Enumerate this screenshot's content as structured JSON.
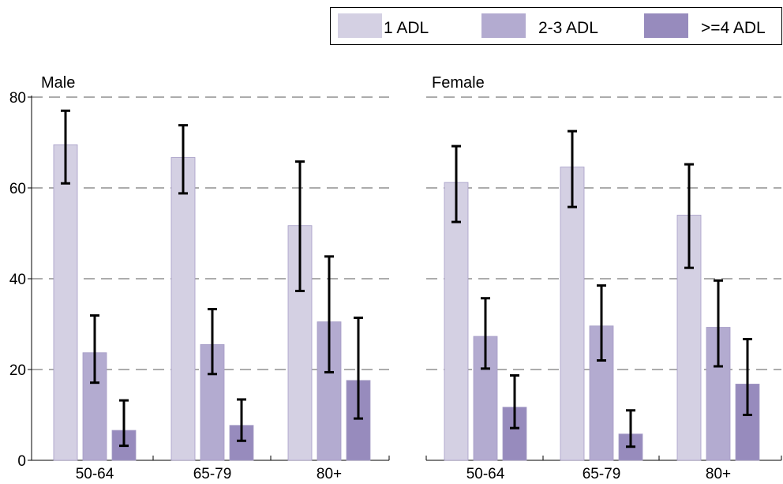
{
  "chart_data": {
    "type": "bar",
    "categories": [
      "50-64",
      "65-79",
      "80+"
    ],
    "ylim": [
      0,
      80
    ],
    "yticks": [
      0,
      20,
      40,
      60,
      80
    ],
    "grid": "dashed horizontal",
    "legend_position": "top-right",
    "legend": [
      {
        "label": "1 ADL",
        "color": "#d4d0e3"
      },
      {
        "label": "2-3 ADL",
        "color": "#b3abd0"
      },
      {
        "label": ">=4 ADL",
        "color": "#978bbd"
      }
    ],
    "panels": [
      {
        "title": "Male",
        "series": [
          {
            "name": "1 ADL",
            "values": [
              69.5,
              66.7,
              51.7
            ],
            "ci_low": [
              61.0,
              58.8,
              37.3
            ],
            "ci_high": [
              77.0,
              73.8,
              65.8
            ]
          },
          {
            "name": "2-3 ADL",
            "values": [
              23.7,
              25.5,
              30.5
            ],
            "ci_low": [
              17.1,
              19.0,
              19.4
            ],
            "ci_high": [
              31.9,
              33.3,
              44.9
            ]
          },
          {
            "name": ">=4 ADL",
            "values": [
              6.6,
              7.7,
              17.6
            ],
            "ci_low": [
              3.2,
              4.3,
              9.2
            ],
            "ci_high": [
              13.2,
              13.4,
              31.4
            ]
          }
        ]
      },
      {
        "title": "Female",
        "series": [
          {
            "name": "1 ADL",
            "values": [
              61.2,
              64.6,
              54.0
            ],
            "ci_low": [
              52.5,
              55.8,
              42.4
            ],
            "ci_high": [
              69.2,
              72.5,
              65.2
            ]
          },
          {
            "name": "2-3 ADL",
            "values": [
              27.3,
              29.6,
              29.3
            ],
            "ci_low": [
              20.2,
              22.0,
              20.7
            ],
            "ci_high": [
              35.7,
              38.5,
              39.6
            ]
          },
          {
            "name": ">=4 ADL",
            "values": [
              11.7,
              5.8,
              16.8
            ],
            "ci_low": [
              7.1,
              3.0,
              10.0
            ],
            "ci_high": [
              18.7,
              11.0,
              26.7
            ]
          }
        ]
      }
    ]
  }
}
